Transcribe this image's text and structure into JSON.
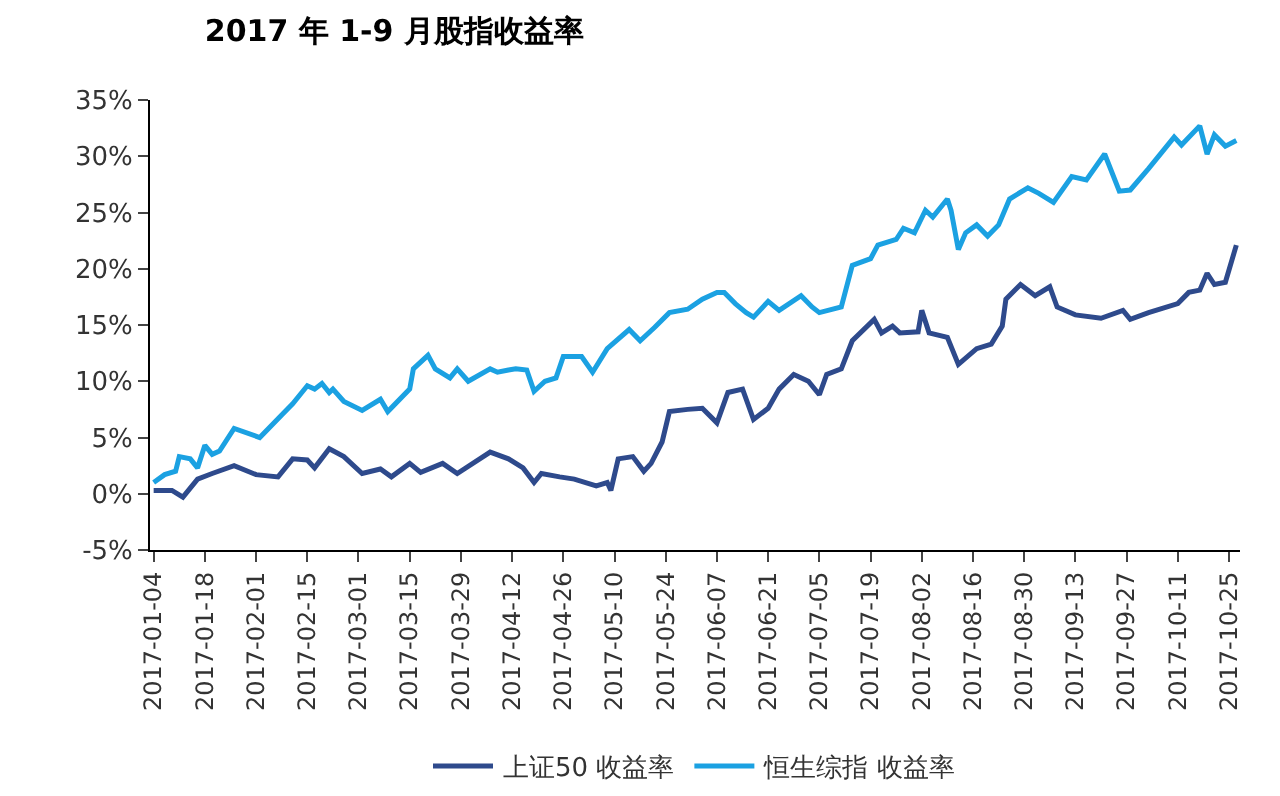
{
  "chart_data": {
    "type": "line",
    "title": "2017 年 1-9 月股指收益率",
    "xlim": [
      "2017-01-03",
      "2017-10-28"
    ],
    "xticks": [
      "2017-01-04",
      "2017-01-18",
      "2017-02-01",
      "2017-02-15",
      "2017-03-01",
      "2017-03-15",
      "2017-03-29",
      "2017-04-12",
      "2017-04-26",
      "2017-05-10",
      "2017-05-24",
      "2017-06-07",
      "2017-06-21",
      "2017-07-05",
      "2017-07-19",
      "2017-08-02",
      "2017-08-16",
      "2017-08-30",
      "2017-09-13",
      "2017-09-27",
      "2017-10-11",
      "2017-10-25"
    ],
    "ylim": [
      -5,
      35
    ],
    "yticks": [
      {
        "value": -5,
        "label": "-5%"
      },
      {
        "value": 0,
        "label": "0%"
      },
      {
        "value": 5,
        "label": "5%"
      },
      {
        "value": 10,
        "label": "10%"
      },
      {
        "value": 15,
        "label": "15%"
      },
      {
        "value": 20,
        "label": "20%"
      },
      {
        "value": 25,
        "label": "25%"
      },
      {
        "value": 30,
        "label": "30%"
      },
      {
        "value": 35,
        "label": "35%"
      }
    ],
    "legend": "bottom",
    "marker": "none",
    "line_style": "solid",
    "series": [
      {
        "name": "上证50 收益率",
        "color": "#2e4a8c",
        "x": [
          "2017-01-04",
          "2017-01-09",
          "2017-01-12",
          "2017-01-16",
          "2017-01-20",
          "2017-01-26",
          "2017-02-01",
          "2017-02-07",
          "2017-02-11",
          "2017-02-15",
          "2017-02-17",
          "2017-02-21",
          "2017-02-25",
          "2017-03-02",
          "2017-03-07",
          "2017-03-10",
          "2017-03-15",
          "2017-03-18",
          "2017-03-24",
          "2017-03-28",
          "2017-04-06",
          "2017-04-11",
          "2017-04-15",
          "2017-04-18",
          "2017-04-20",
          "2017-04-25",
          "2017-04-29",
          "2017-05-05",
          "2017-05-08",
          "2017-05-09",
          "2017-05-11",
          "2017-05-15",
          "2017-05-18",
          "2017-05-20",
          "2017-05-23",
          "2017-05-25",
          "2017-05-30",
          "2017-06-03",
          "2017-06-07",
          "2017-06-10",
          "2017-06-14",
          "2017-06-17",
          "2017-06-21",
          "2017-06-24",
          "2017-06-28",
          "2017-07-02",
          "2017-07-05",
          "2017-07-07",
          "2017-07-11",
          "2017-07-14",
          "2017-07-20",
          "2017-07-22",
          "2017-07-25",
          "2017-07-27",
          "2017-08-01",
          "2017-08-02",
          "2017-08-04",
          "2017-08-09",
          "2017-08-12",
          "2017-08-17",
          "2017-08-21",
          "2017-08-24",
          "2017-08-25",
          "2017-08-29",
          "2017-09-02",
          "2017-09-06",
          "2017-09-08",
          "2017-09-13",
          "2017-09-20",
          "2017-09-26",
          "2017-09-28",
          "2017-10-03",
          "2017-10-11",
          "2017-10-14",
          "2017-10-17",
          "2017-10-19",
          "2017-10-21",
          "2017-10-24",
          "2017-10-27"
        ],
        "values": [
          0.3,
          0.3,
          -0.3,
          1.3,
          1.8,
          2.5,
          1.7,
          1.5,
          3.1,
          3.0,
          2.3,
          4.0,
          3.3,
          1.8,
          2.2,
          1.5,
          2.7,
          1.9,
          2.7,
          1.8,
          3.7,
          3.1,
          2.3,
          1.0,
          1.8,
          1.5,
          1.3,
          0.7,
          1.0,
          0.3,
          3.1,
          3.3,
          2.0,
          2.7,
          4.6,
          7.3,
          7.5,
          7.6,
          6.3,
          9.0,
          9.3,
          6.6,
          7.6,
          9.3,
          10.6,
          10.0,
          8.8,
          10.6,
          11.1,
          13.6,
          15.5,
          14.3,
          14.9,
          14.3,
          14.4,
          16.3,
          14.3,
          13.9,
          11.5,
          12.9,
          13.3,
          14.9,
          17.3,
          18.6,
          17.6,
          18.4,
          16.6,
          15.9,
          15.6,
          16.3,
          15.5,
          16.1,
          16.9,
          17.9,
          18.1,
          19.6,
          18.6,
          18.8,
          22.1
        ]
      },
      {
        "name": "恒生综指 收益率",
        "color": "#1ba1e2",
        "x": [
          "2017-01-04",
          "2017-01-07",
          "2017-01-10",
          "2017-01-11",
          "2017-01-14",
          "2017-01-16",
          "2017-01-18",
          "2017-01-20",
          "2017-01-22",
          "2017-01-26",
          "2017-02-02",
          "2017-02-08",
          "2017-02-11",
          "2017-02-15",
          "2017-02-17",
          "2017-02-19",
          "2017-02-21",
          "2017-02-22",
          "2017-02-25",
          "2017-03-02",
          "2017-03-07",
          "2017-03-09",
          "2017-03-15",
          "2017-03-16",
          "2017-03-20",
          "2017-03-22",
          "2017-03-26",
          "2017-03-28",
          "2017-03-31",
          "2017-04-06",
          "2017-04-08",
          "2017-04-11",
          "2017-04-13",
          "2017-04-16",
          "2017-04-18",
          "2017-04-21",
          "2017-04-24",
          "2017-04-26",
          "2017-05-01",
          "2017-05-04",
          "2017-05-08",
          "2017-05-14",
          "2017-05-17",
          "2017-05-21",
          "2017-05-25",
          "2017-05-30",
          "2017-06-03",
          "2017-06-07",
          "2017-06-09",
          "2017-06-12",
          "2017-06-15",
          "2017-06-17",
          "2017-06-21",
          "2017-06-24",
          "2017-06-30",
          "2017-07-03",
          "2017-07-05",
          "2017-07-11",
          "2017-07-14",
          "2017-07-19",
          "2017-07-21",
          "2017-07-26",
          "2017-07-28",
          "2017-07-31",
          "2017-08-03",
          "2017-08-05",
          "2017-08-09",
          "2017-08-10",
          "2017-08-12",
          "2017-08-14",
          "2017-08-17",
          "2017-08-20",
          "2017-08-23",
          "2017-08-26",
          "2017-08-31",
          "2017-09-03",
          "2017-09-07",
          "2017-09-12",
          "2017-09-16",
          "2017-09-21",
          "2017-09-25",
          "2017-09-28",
          "2017-10-03",
          "2017-10-10",
          "2017-10-12",
          "2017-10-17",
          "2017-10-19",
          "2017-10-21",
          "2017-10-24",
          "2017-10-27"
        ],
        "values": [
          1.0,
          1.7,
          2.0,
          3.3,
          3.1,
          2.3,
          4.3,
          3.5,
          3.8,
          5.8,
          5.0,
          7.0,
          8.0,
          9.6,
          9.3,
          9.8,
          9.0,
          9.3,
          8.2,
          7.4,
          8.4,
          7.3,
          9.3,
          11.1,
          12.3,
          11.1,
          10.3,
          11.1,
          10.0,
          11.1,
          10.8,
          11.0,
          11.1,
          11.0,
          9.1,
          10.0,
          10.3,
          12.2,
          12.2,
          10.8,
          12.9,
          14.6,
          13.6,
          14.8,
          16.1,
          16.4,
          17.3,
          17.9,
          17.9,
          16.9,
          16.1,
          15.7,
          17.1,
          16.3,
          17.6,
          16.6,
          16.1,
          16.6,
          20.3,
          20.9,
          22.1,
          22.6,
          23.6,
          23.2,
          25.2,
          24.6,
          26.2,
          25.2,
          21.7,
          23.2,
          23.9,
          22.9,
          23.9,
          26.2,
          27.2,
          26.7,
          25.9,
          28.2,
          27.9,
          30.2,
          26.9,
          27.0,
          28.9,
          31.7,
          31.0,
          32.7,
          30.2,
          31.9,
          30.9,
          31.4
        ]
      }
    ]
  }
}
